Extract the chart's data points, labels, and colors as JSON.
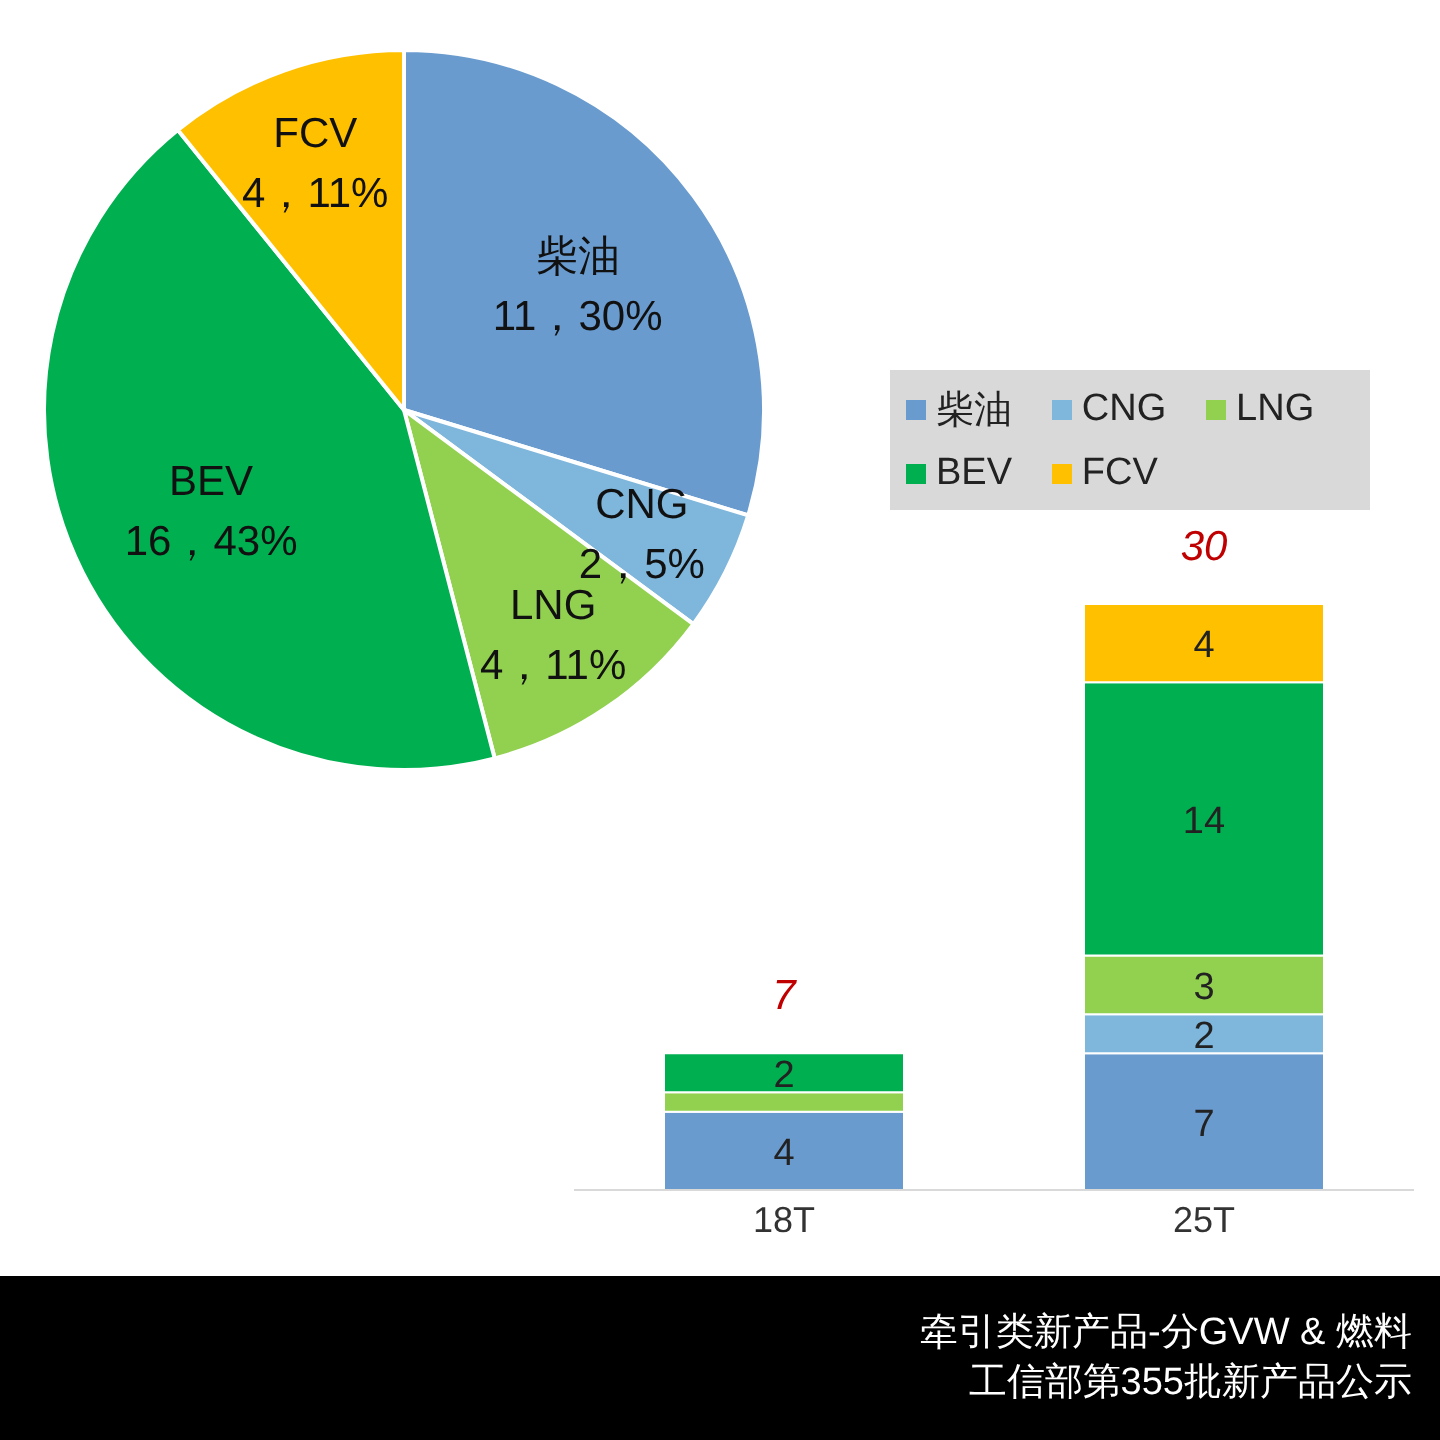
{
  "chart_data": [
    {
      "type": "pie",
      "categories": [
        "柴油",
        "CNG",
        "LNG",
        "BEV",
        "FCV"
      ],
      "values": [
        11,
        2,
        4,
        16,
        4
      ],
      "colors": [
        "#6a9bcf",
        "#7eb6dc",
        "#92d050",
        "#00b050",
        "#ffc000"
      ],
      "value_labels": [
        "11，30%",
        "2，5%",
        "4，11%",
        "16，43%",
        "4，11%"
      ]
    },
    {
      "type": "bar",
      "stacked": true,
      "categories": [
        "18T",
        "25T"
      ],
      "legend": "top",
      "series": [
        {
          "name": "柴油",
          "color": "#6a9bcf",
          "values": [
            4,
            7
          ],
          "value_labels": [
            "4",
            "7"
          ]
        },
        {
          "name": "CNG",
          "color": "#7eb6dc",
          "values": [
            null,
            2
          ],
          "value_labels": [
            null,
            "2"
          ]
        },
        {
          "name": "LNG",
          "color": "#92d050",
          "values": [
            1,
            3
          ],
          "value_labels": [
            null,
            "3"
          ]
        },
        {
          "name": "BEV",
          "color": "#00b050",
          "values": [
            2,
            14
          ],
          "value_labels": [
            "2",
            "14"
          ]
        },
        {
          "name": "FCV",
          "color": "#ffc000",
          "values": [
            null,
            4
          ],
          "value_labels": [
            null,
            "4"
          ]
        }
      ],
      "totals": [
        "7",
        "30"
      ],
      "annotations": [
        "牵引类新产品-分GVW & 燃料",
        "工信部第355批新产品公示"
      ]
    }
  ]
}
